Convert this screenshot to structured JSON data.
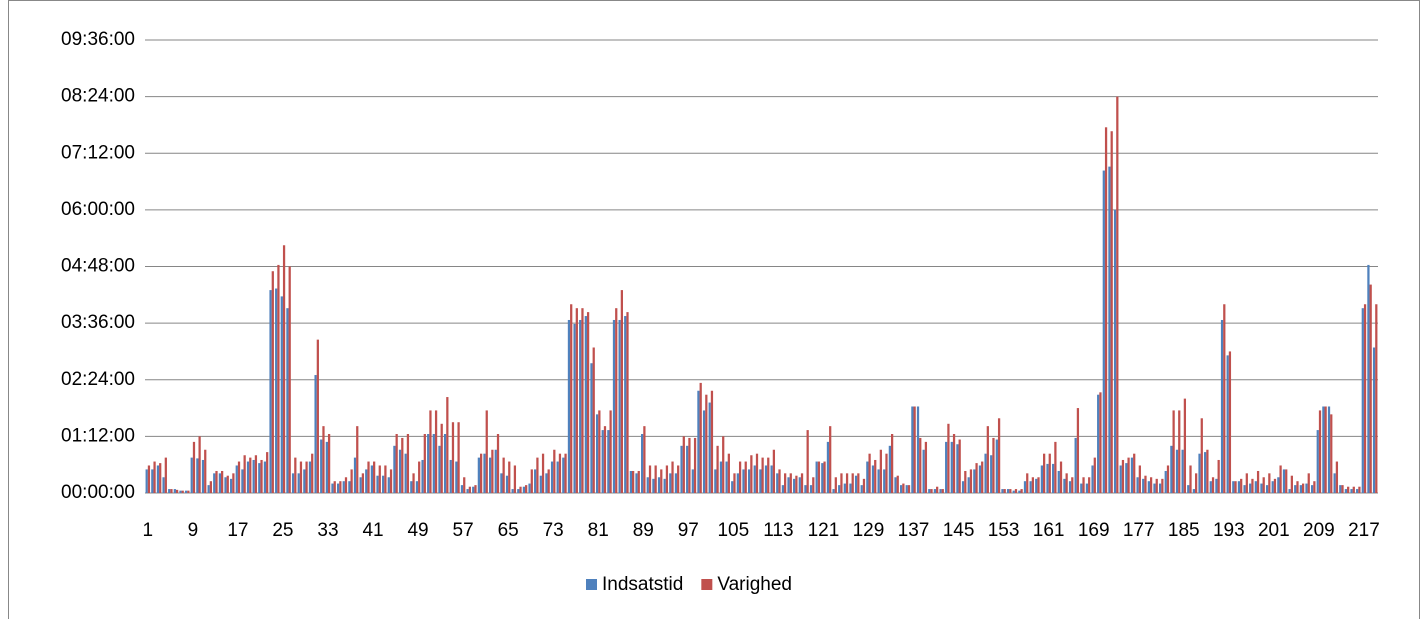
{
  "chart_data": {
    "type": "bar",
    "categories": [
      1,
      null,
      null,
      null,
      null,
      null,
      null,
      null,
      9,
      null,
      null,
      null,
      null,
      null,
      null,
      null,
      17,
      null,
      null,
      null,
      null,
      null,
      null,
      null,
      25,
      null,
      null,
      null,
      null,
      null,
      null,
      null,
      33,
      null,
      null,
      null,
      null,
      null,
      null,
      null,
      41,
      null,
      null,
      null,
      null,
      null,
      null,
      null,
      49,
      null,
      null,
      null,
      null,
      null,
      null,
      null,
      57,
      null,
      null,
      null,
      null,
      null,
      null,
      null,
      65,
      null,
      null,
      null,
      null,
      null,
      null,
      null,
      73,
      null,
      null,
      null,
      null,
      null,
      null,
      null,
      81,
      null,
      null,
      null,
      null,
      null,
      null,
      null,
      89,
      null,
      null,
      null,
      null,
      null,
      null,
      null,
      97,
      null,
      null,
      null,
      null,
      null,
      null,
      null,
      105,
      null,
      null,
      null,
      null,
      null,
      null,
      null,
      113,
      null,
      null,
      null,
      null,
      null,
      null,
      null,
      121,
      null,
      null,
      null,
      null,
      null,
      null,
      null,
      129,
      null,
      null,
      null,
      null,
      null,
      null,
      null,
      137,
      null,
      null,
      null,
      null,
      null,
      null,
      null,
      145,
      null,
      null,
      null,
      null,
      null,
      null,
      null,
      153,
      null,
      null,
      null,
      null,
      null,
      null,
      null,
      161,
      null,
      null,
      null,
      null,
      null,
      null,
      null,
      169,
      null,
      null,
      null,
      null,
      null,
      null,
      null,
      177,
      null,
      null,
      null,
      null,
      null,
      null,
      null,
      185,
      null,
      null,
      null,
      null,
      null,
      null,
      null,
      193,
      null,
      null,
      null,
      null,
      null,
      null,
      null,
      201,
      null,
      null,
      null,
      null,
      null,
      null,
      null,
      209,
      null,
      null,
      null,
      null,
      null,
      null,
      null,
      217,
      null,
      null
    ],
    "series": [
      {
        "name": "Indsatstid",
        "color": "#4f81bd",
        "values": [
          30,
          30,
          35,
          20,
          5,
          5,
          3,
          3,
          45,
          44,
          42,
          10,
          25,
          25,
          20,
          18,
          35,
          30,
          40,
          42,
          38,
          40,
          258,
          260,
          250,
          235,
          25,
          25,
          30,
          40,
          150,
          68,
          65,
          12,
          12,
          15,
          15,
          45,
          20,
          30,
          35,
          22,
          22,
          20,
          60,
          55,
          50,
          15,
          15,
          42,
          75,
          75,
          60,
          75,
          42,
          40,
          10,
          5,
          8,
          45,
          50,
          45,
          55,
          25,
          22,
          5,
          5,
          8,
          12,
          30,
          22,
          25,
          40,
          40,
          45,
          220,
          215,
          220,
          225,
          165,
          100,
          80,
          80,
          220,
          220,
          225,
          28,
          25,
          75,
          20,
          18,
          20,
          18,
          25,
          25,
          60,
          60,
          30,
          130,
          105,
          115,
          30,
          40,
          40,
          15,
          25,
          30,
          30,
          35,
          30,
          35,
          35,
          25,
          10,
          20,
          18,
          20,
          10,
          10,
          40,
          38,
          65,
          5,
          10,
          12,
          12,
          22,
          10,
          40,
          35,
          30,
          30,
          60,
          20,
          10,
          10,
          110,
          110,
          55,
          5,
          5,
          5,
          65,
          65,
          62,
          15,
          20,
          30,
          35,
          50,
          48,
          68,
          5,
          5,
          3,
          3,
          15,
          15,
          18,
          35,
          37,
          37,
          28,
          18,
          15,
          70,
          12,
          12,
          35,
          125,
          410,
          415,
          360,
          35,
          38,
          45,
          20,
          18,
          15,
          12,
          12,
          28,
          60,
          55,
          55,
          10,
          5,
          50,
          52,
          15,
          18,
          220,
          175,
          15,
          15,
          10,
          12,
          15,
          12,
          10,
          15,
          20,
          30,
          5,
          10,
          10,
          12,
          10,
          80,
          110,
          110,
          25,
          10,
          5,
          5,
          5,
          235,
          290,
          185
        ]
      },
      {
        "name": "Varighed",
        "color": "#c0504d",
        "values": [
          35,
          40,
          38,
          45,
          5,
          4,
          3,
          3,
          65,
          72,
          55,
          15,
          28,
          28,
          22,
          25,
          40,
          48,
          45,
          48,
          42,
          52,
          282,
          290,
          315,
          288,
          45,
          40,
          40,
          50,
          195,
          85,
          75,
          15,
          15,
          20,
          30,
          85,
          25,
          40,
          40,
          35,
          35,
          30,
          75,
          70,
          75,
          25,
          40,
          75,
          105,
          105,
          88,
          122,
          90,
          90,
          20,
          8,
          10,
          50,
          105,
          55,
          75,
          45,
          40,
          35,
          8,
          10,
          30,
          45,
          50,
          30,
          55,
          50,
          50,
          240,
          235,
          235,
          230,
          185,
          105,
          85,
          105,
          235,
          258,
          230,
          28,
          28,
          85,
          35,
          35,
          30,
          35,
          40,
          35,
          72,
          70,
          70,
          140,
          125,
          130,
          60,
          72,
          50,
          25,
          40,
          40,
          48,
          50,
          45,
          45,
          55,
          30,
          25,
          25,
          22,
          25,
          80,
          20,
          40,
          40,
          85,
          20,
          25,
          25,
          25,
          25,
          18,
          50,
          42,
          55,
          50,
          75,
          22,
          12,
          10,
          110,
          70,
          65,
          5,
          8,
          5,
          88,
          75,
          68,
          28,
          30,
          38,
          40,
          85,
          70,
          95,
          5,
          5,
          5,
          5,
          25,
          20,
          20,
          50,
          50,
          65,
          40,
          25,
          20,
          108,
          20,
          20,
          45,
          128,
          465,
          460,
          504,
          42,
          45,
          50,
          35,
          22,
          20,
          18,
          18,
          35,
          105,
          105,
          120,
          35,
          25,
          95,
          55,
          20,
          42,
          240,
          180,
          15,
          18,
          25,
          18,
          28,
          20,
          25,
          18,
          35,
          30,
          22,
          15,
          12,
          25,
          15,
          105,
          110,
          100,
          40,
          10,
          8,
          8,
          8,
          240,
          265,
          240
        ]
      }
    ],
    "ylim": [
      0,
      576
    ],
    "yticks": [
      {
        "value": 0,
        "label": "00:00:00"
      },
      {
        "value": 72,
        "label": "01:12:00"
      },
      {
        "value": 144,
        "label": "02:24:00"
      },
      {
        "value": 216,
        "label": "03:36:00"
      },
      {
        "value": 288,
        "label": "04:48:00"
      },
      {
        "value": 360,
        "label": "06:00:00"
      },
      {
        "value": 432,
        "label": "07:12:00"
      },
      {
        "value": 504,
        "label": "08:24:00"
      },
      {
        "value": 576,
        "label": "09:36:00"
      }
    ],
    "grid": true,
    "legend": "bottom"
  }
}
